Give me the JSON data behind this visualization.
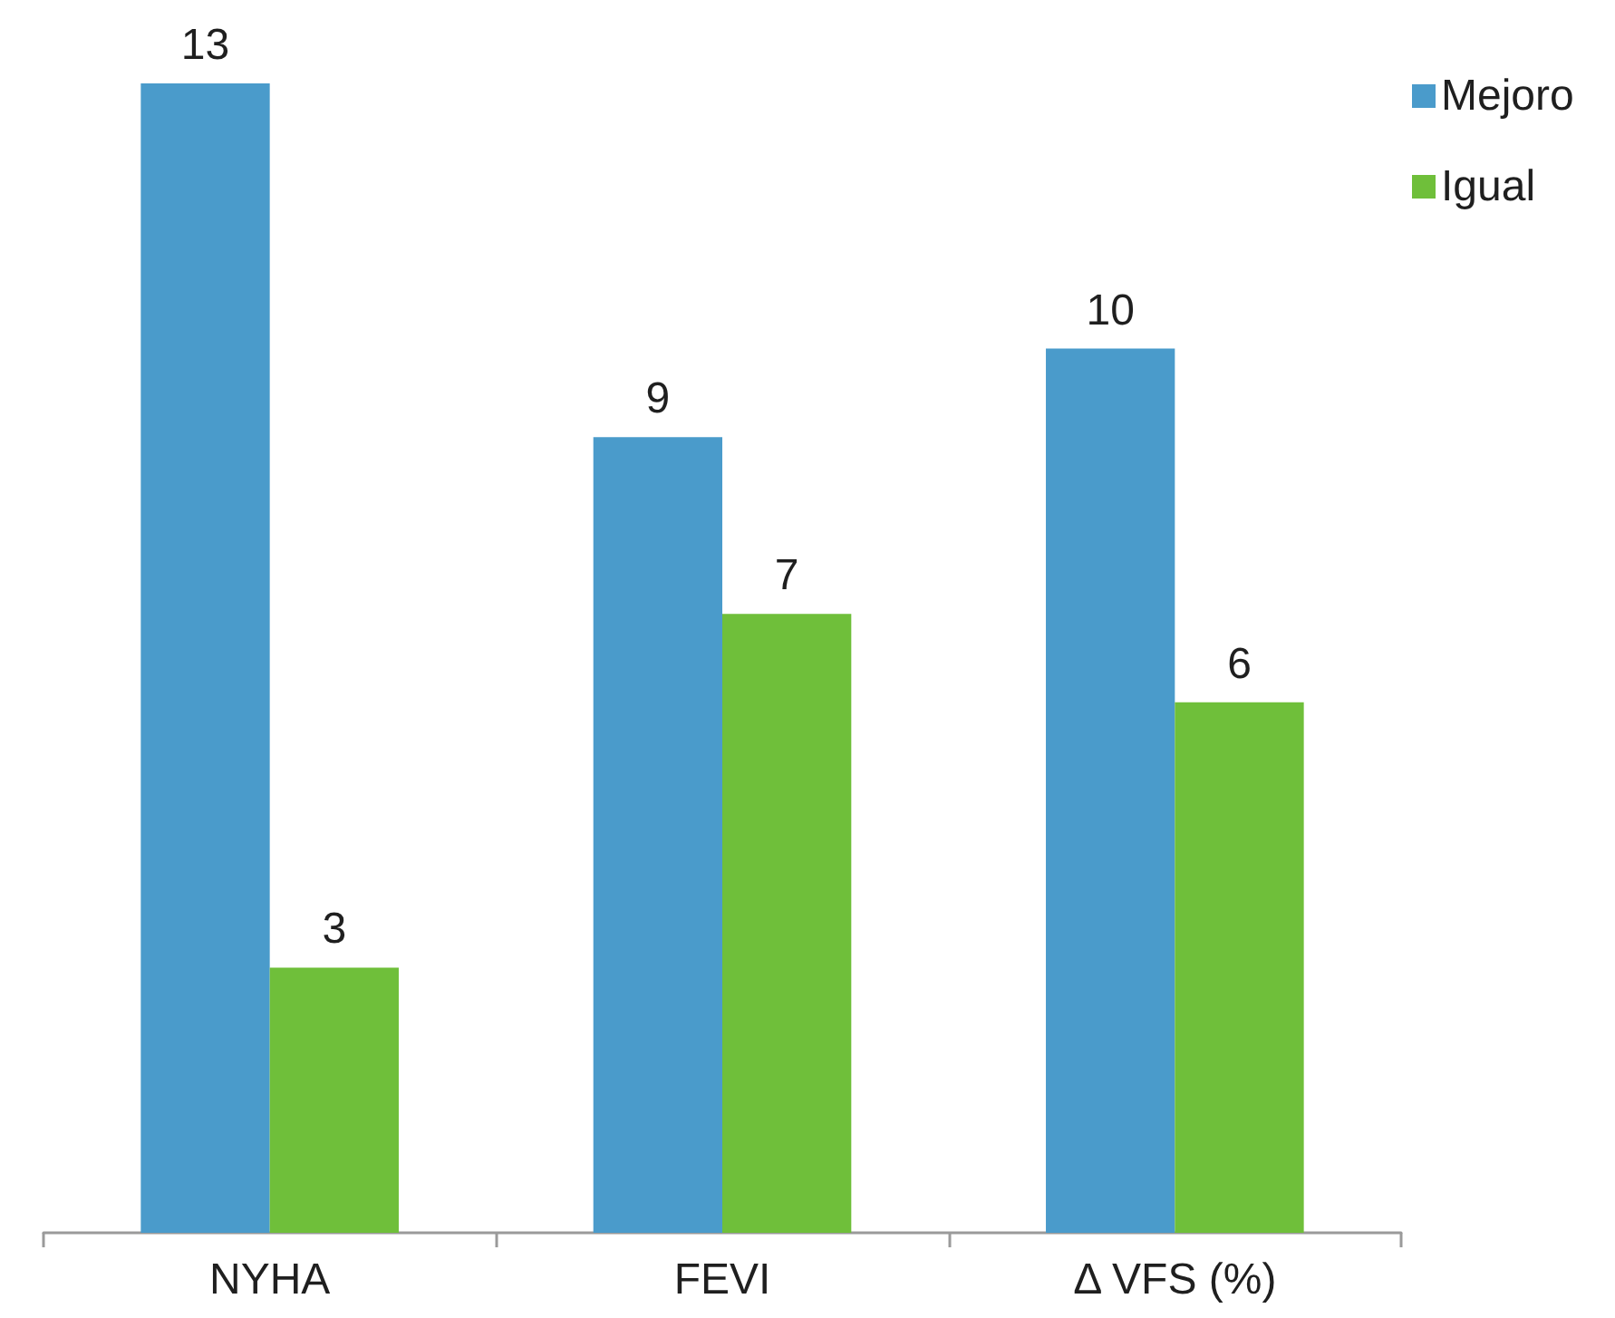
{
  "chart_data": {
    "type": "bar",
    "categories": [
      "NYHA",
      "FEVI",
      "Δ VFS (%)"
    ],
    "series": [
      {
        "name": "Mejoro",
        "color": "#4a9bcb",
        "values": [
          13,
          9,
          10
        ]
      },
      {
        "name": "Igual",
        "color": "#6fbf3a",
        "values": [
          3,
          7,
          6
        ]
      }
    ],
    "data_labels": true,
    "legend": "top right"
  }
}
